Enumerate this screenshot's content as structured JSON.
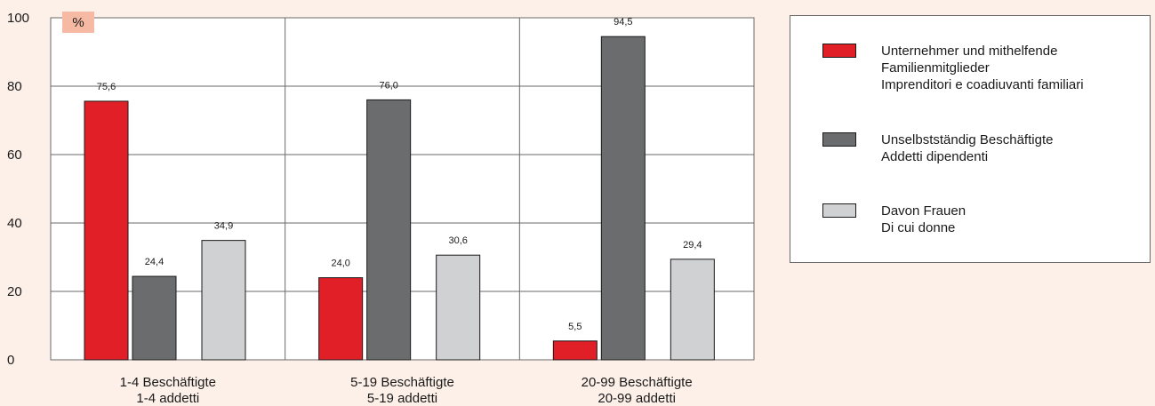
{
  "chart_data": {
    "type": "bar",
    "unit_label": "%",
    "ylim": [
      0,
      100
    ],
    "yticks": [
      0,
      20,
      40,
      60,
      80,
      100
    ],
    "grid": true,
    "legend_position": "right",
    "categories": [
      {
        "line1": "1-4 Beschäftigte",
        "line2": "1-4 addetti"
      },
      {
        "line1": "5-19 Beschäftigte",
        "line2": "5-19 addetti"
      },
      {
        "line1": "20-99 Beschäftigte",
        "line2": "20-99 addetti"
      }
    ],
    "series": [
      {
        "name": "Unternehmer und mithelfende Familienmitglieder / Imprenditori e coadiuvanti familiari",
        "color": "#e01f26",
        "values": [
          75.6,
          24.0,
          5.5
        ],
        "labels": [
          "75,6",
          "24,0",
          "5,5"
        ]
      },
      {
        "name": "Unselbstständig Beschäftigte / Addetti dipendenti",
        "color": "#6b6c6e",
        "values": [
          24.4,
          76.0,
          94.5
        ],
        "labels": [
          "24,4",
          "76,0",
          "94,5"
        ]
      },
      {
        "name": "Davon Frauen / Di cui donne",
        "color": "#d0d1d3",
        "values": [
          34.9,
          30.6,
          29.4
        ],
        "labels": [
          "34,9",
          "30,6",
          "29,4"
        ]
      }
    ]
  },
  "legend": {
    "items": [
      {
        "color": "#e01f26",
        "lines": [
          "Unternehmer und mithelfende",
          "Familienmitglieder",
          "Imprenditori e coadiuvanti familiari"
        ]
      },
      {
        "color": "#6b6c6e",
        "lines": [
          "Unselbstständig Beschäftigte",
          "Addetti dipendenti"
        ]
      },
      {
        "color": "#d0d1d3",
        "lines": [
          "Davon Frauen",
          "Di cui donne"
        ]
      }
    ]
  }
}
